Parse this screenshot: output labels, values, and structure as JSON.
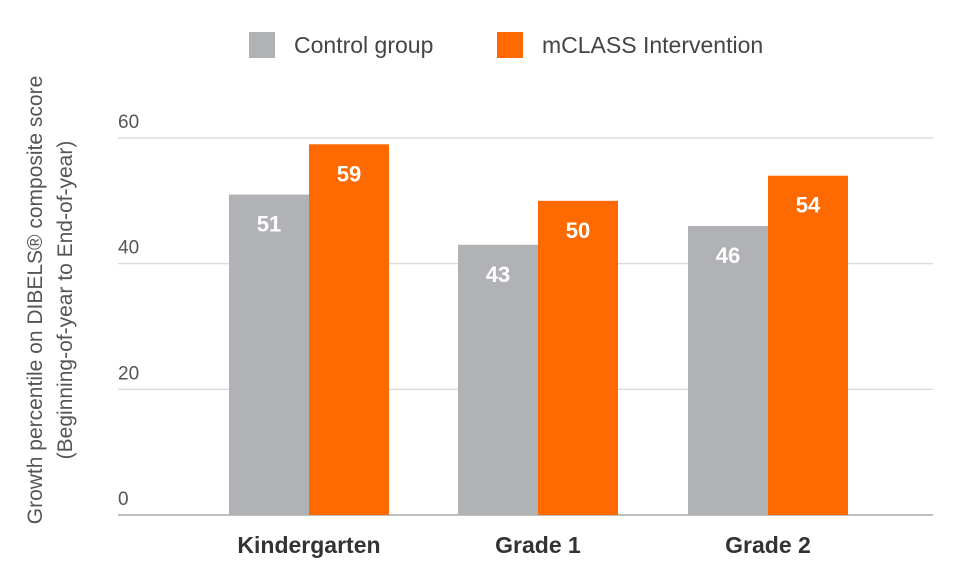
{
  "chart_data": {
    "type": "bar",
    "title": "",
    "xlabel": "",
    "ylabel": [
      "Growth percentile on DIBELS® composite score",
      "(Beginning-of-year to End-of-year)"
    ],
    "ylim": [
      0,
      60
    ],
    "yticks": [
      0,
      20,
      40,
      60
    ],
    "grid": true,
    "legend_position": "top",
    "categories": [
      "Kindergarten",
      "Grade 1",
      "Grade 2"
    ],
    "series": [
      {
        "name": "Control group",
        "color": "#b1b2b5",
        "values": [
          51,
          43,
          46
        ]
      },
      {
        "name": "mCLASS Intervention",
        "color": "#ff6a00",
        "values": [
          59,
          50,
          54
        ]
      }
    ]
  }
}
